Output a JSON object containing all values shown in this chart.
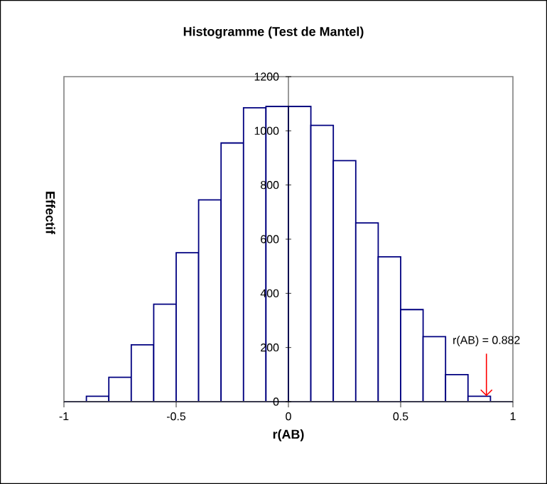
{
  "chart_data": {
    "type": "histogram",
    "title": "Histogramme (Test de Mantel)",
    "xlabel": "r(AB)",
    "ylabel": "Effectif",
    "bins": [
      -1,
      -0.9,
      -0.8,
      -0.7,
      -0.6,
      -0.5,
      -0.4,
      -0.3,
      -0.2,
      -0.1,
      0,
      0.1,
      0.2,
      0.3,
      0.4,
      0.5,
      0.6,
      0.7,
      0.8,
      0.9,
      1
    ],
    "values": [
      0,
      20,
      90,
      210,
      360,
      550,
      745,
      955,
      1085,
      1090,
      1090,
      1020,
      890,
      660,
      535,
      340,
      240,
      100,
      20,
      0
    ],
    "color": "#000080",
    "xlim": [
      -1,
      1
    ],
    "ylim": [
      0,
      1200
    ],
    "xticks": [
      -1,
      -0.5,
      0,
      0.5,
      1
    ],
    "yticks": [
      0,
      200,
      400,
      600,
      800,
      1000,
      1200
    ],
    "annotations": [
      {
        "text": "r(AB) = 0.882",
        "x": 0.882,
        "y": 20
      }
    ]
  }
}
